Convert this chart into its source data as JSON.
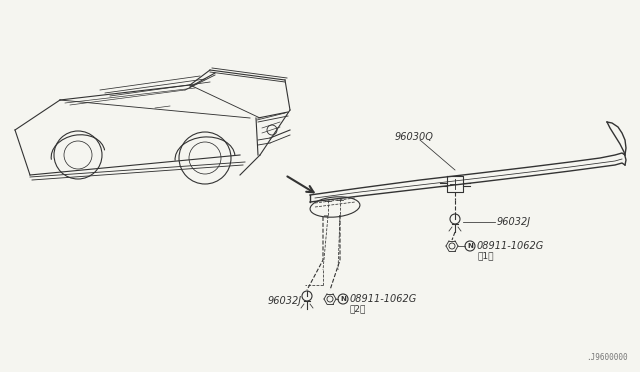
{
  "bg_color": "#f5f5f0",
  "line_color": "#333333",
  "part_labels": {
    "spoiler": "96030Q",
    "clip1": "96032J",
    "nut1": "08911-1062G",
    "nut1_qty": "（1）",
    "clip2": "96032J",
    "nut2": "08911-1062G",
    "nut2_qty": "（2）"
  },
  "watermark": "J9600000"
}
